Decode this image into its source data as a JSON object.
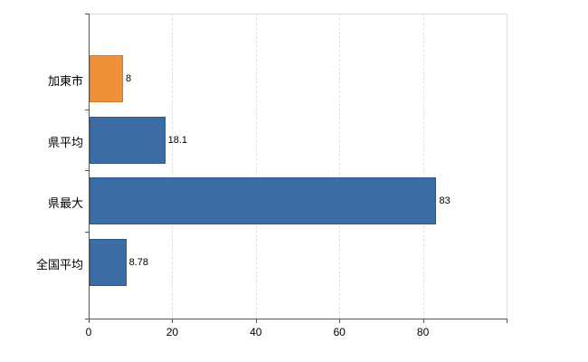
{
  "chart_data": {
    "type": "bar",
    "orientation": "horizontal",
    "title": "",
    "xlabel": "",
    "ylabel": "",
    "categories": [
      "加東市",
      "県平均",
      "県最大",
      "全国平均"
    ],
    "values": [
      8,
      18.1,
      83,
      8.78
    ],
    "value_labels": [
      "8",
      "18.1",
      "83",
      "8.78"
    ],
    "x_ticks": [
      0,
      20,
      40,
      60,
      80
    ],
    "x_tick_labels": [
      "0",
      "20",
      "40",
      "60",
      "80"
    ],
    "xlim": [
      0,
      100
    ],
    "grid": "vertical-dashed",
    "legend": "none",
    "colors": {
      "bar_default": "#3b6ca6",
      "bar_default_border": "#2e598c",
      "bar_highlight": "#f0913a",
      "bar_highlight_border": "#d4781f",
      "highlight_index": 0,
      "axis": "#555555",
      "gridline": "#e0e0e0",
      "label_text": "#000000"
    }
  }
}
